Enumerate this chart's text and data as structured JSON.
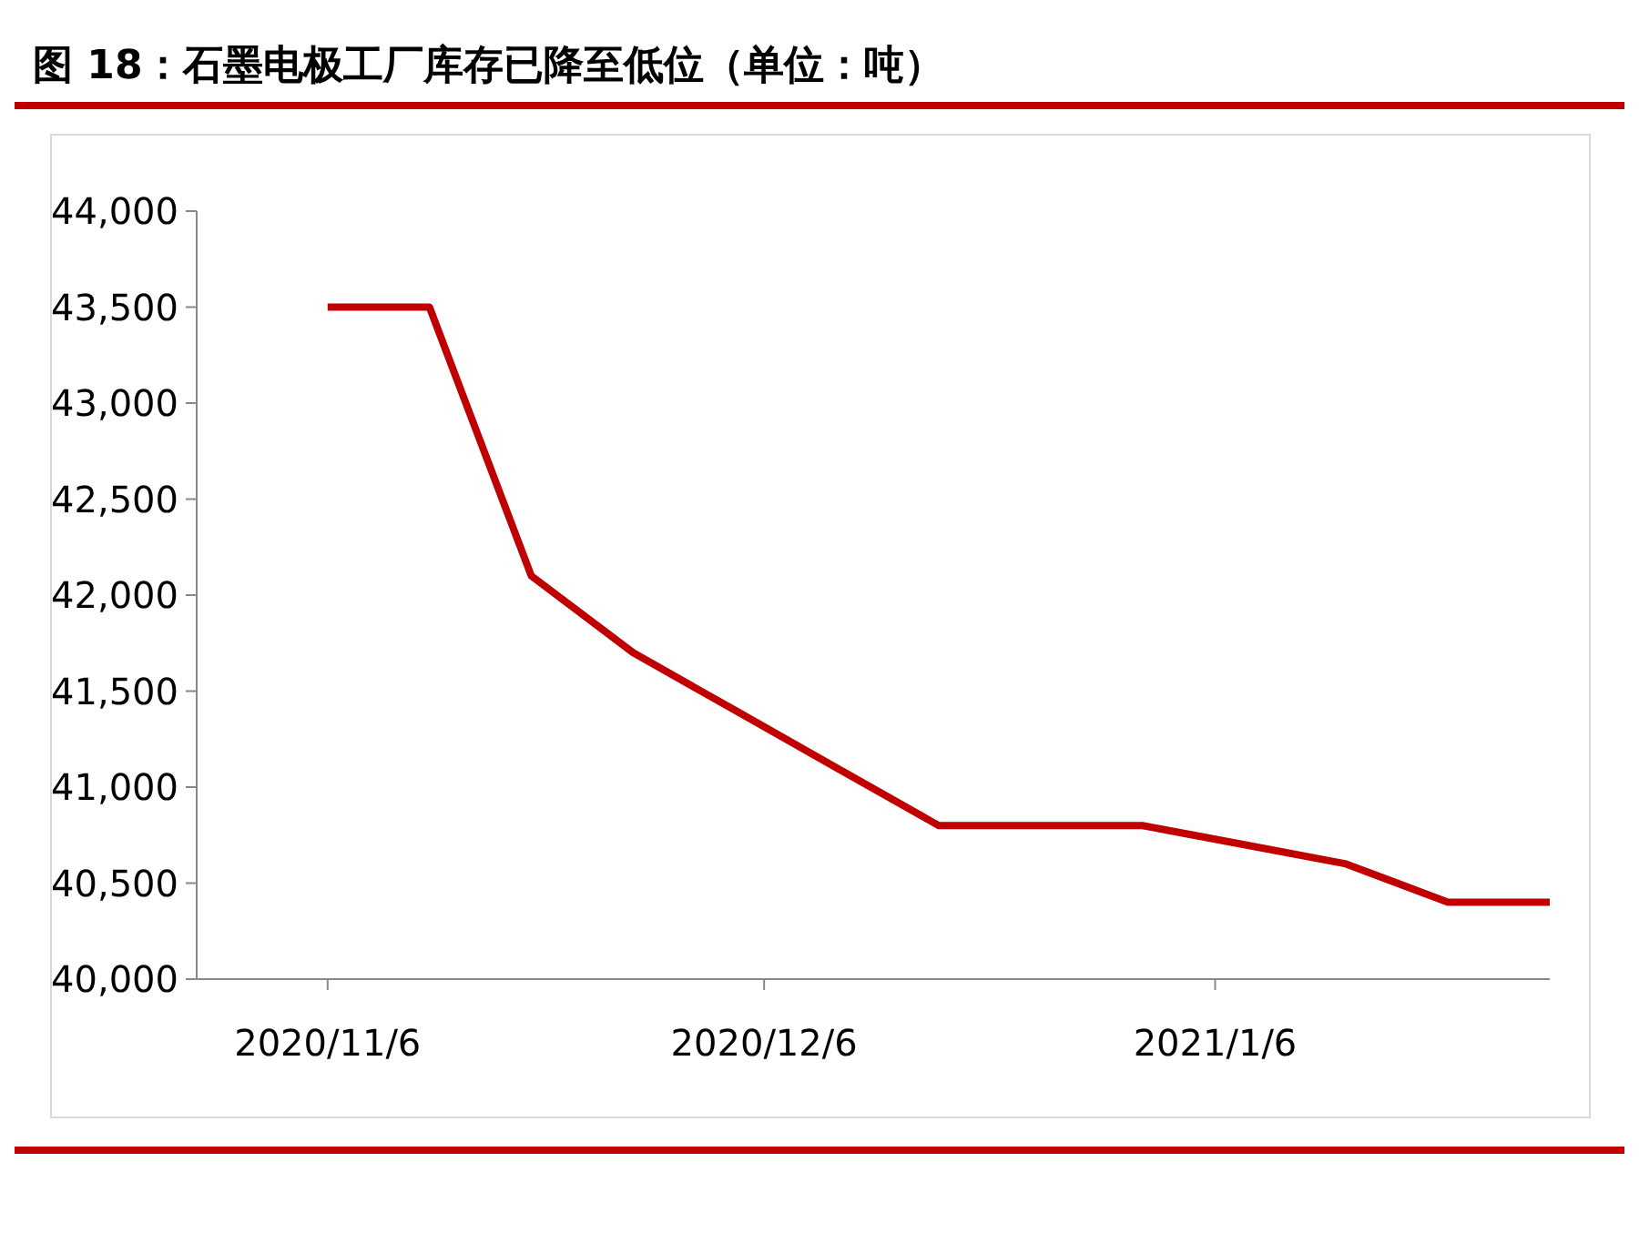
{
  "chart_data": {
    "type": "line",
    "title": "图 18：石墨电极工厂库存已降至低位（单位：吨）",
    "x": [
      "2020-11-06",
      "2020-11-13",
      "2020-11-20",
      "2020-11-27",
      "2020-12-04",
      "2020-12-11",
      "2020-12-18",
      "2020-12-25",
      "2021-01-01",
      "2021-01-08",
      "2021-01-15",
      "2021-01-22",
      "2021-01-29"
    ],
    "series": [
      {
        "color": "#c00000",
        "values": [
          43500,
          43500,
          42100,
          41700,
          41400,
          41100,
          40800,
          40800,
          40800,
          40700,
          40600,
          40400,
          40400
        ]
      }
    ],
    "xlim": [
      "2020-10-28",
      "2021-01-29"
    ],
    "xticks": [
      {
        "value": "2020-11-06",
        "label": "2020/11/6"
      },
      {
        "value": "2020-12-06",
        "label": "2020/12/6"
      },
      {
        "value": "2021-01-06",
        "label": "2021/1/6"
      }
    ],
    "ylim": [
      40000,
      44000
    ],
    "yticks": [
      {
        "value": 40000,
        "label": "40,000"
      },
      {
        "value": 40500,
        "label": "40,500"
      },
      {
        "value": 41000,
        "label": "41,000"
      },
      {
        "value": 41500,
        "label": "41,500"
      },
      {
        "value": 42000,
        "label": "42,000"
      },
      {
        "value": 42500,
        "label": "42,500"
      },
      {
        "value": 43000,
        "label": "43,000"
      },
      {
        "value": 43500,
        "label": "43,500"
      },
      {
        "value": 44000,
        "label": "44,000"
      }
    ],
    "grid": false,
    "marker": "none",
    "line_style": "solid"
  }
}
